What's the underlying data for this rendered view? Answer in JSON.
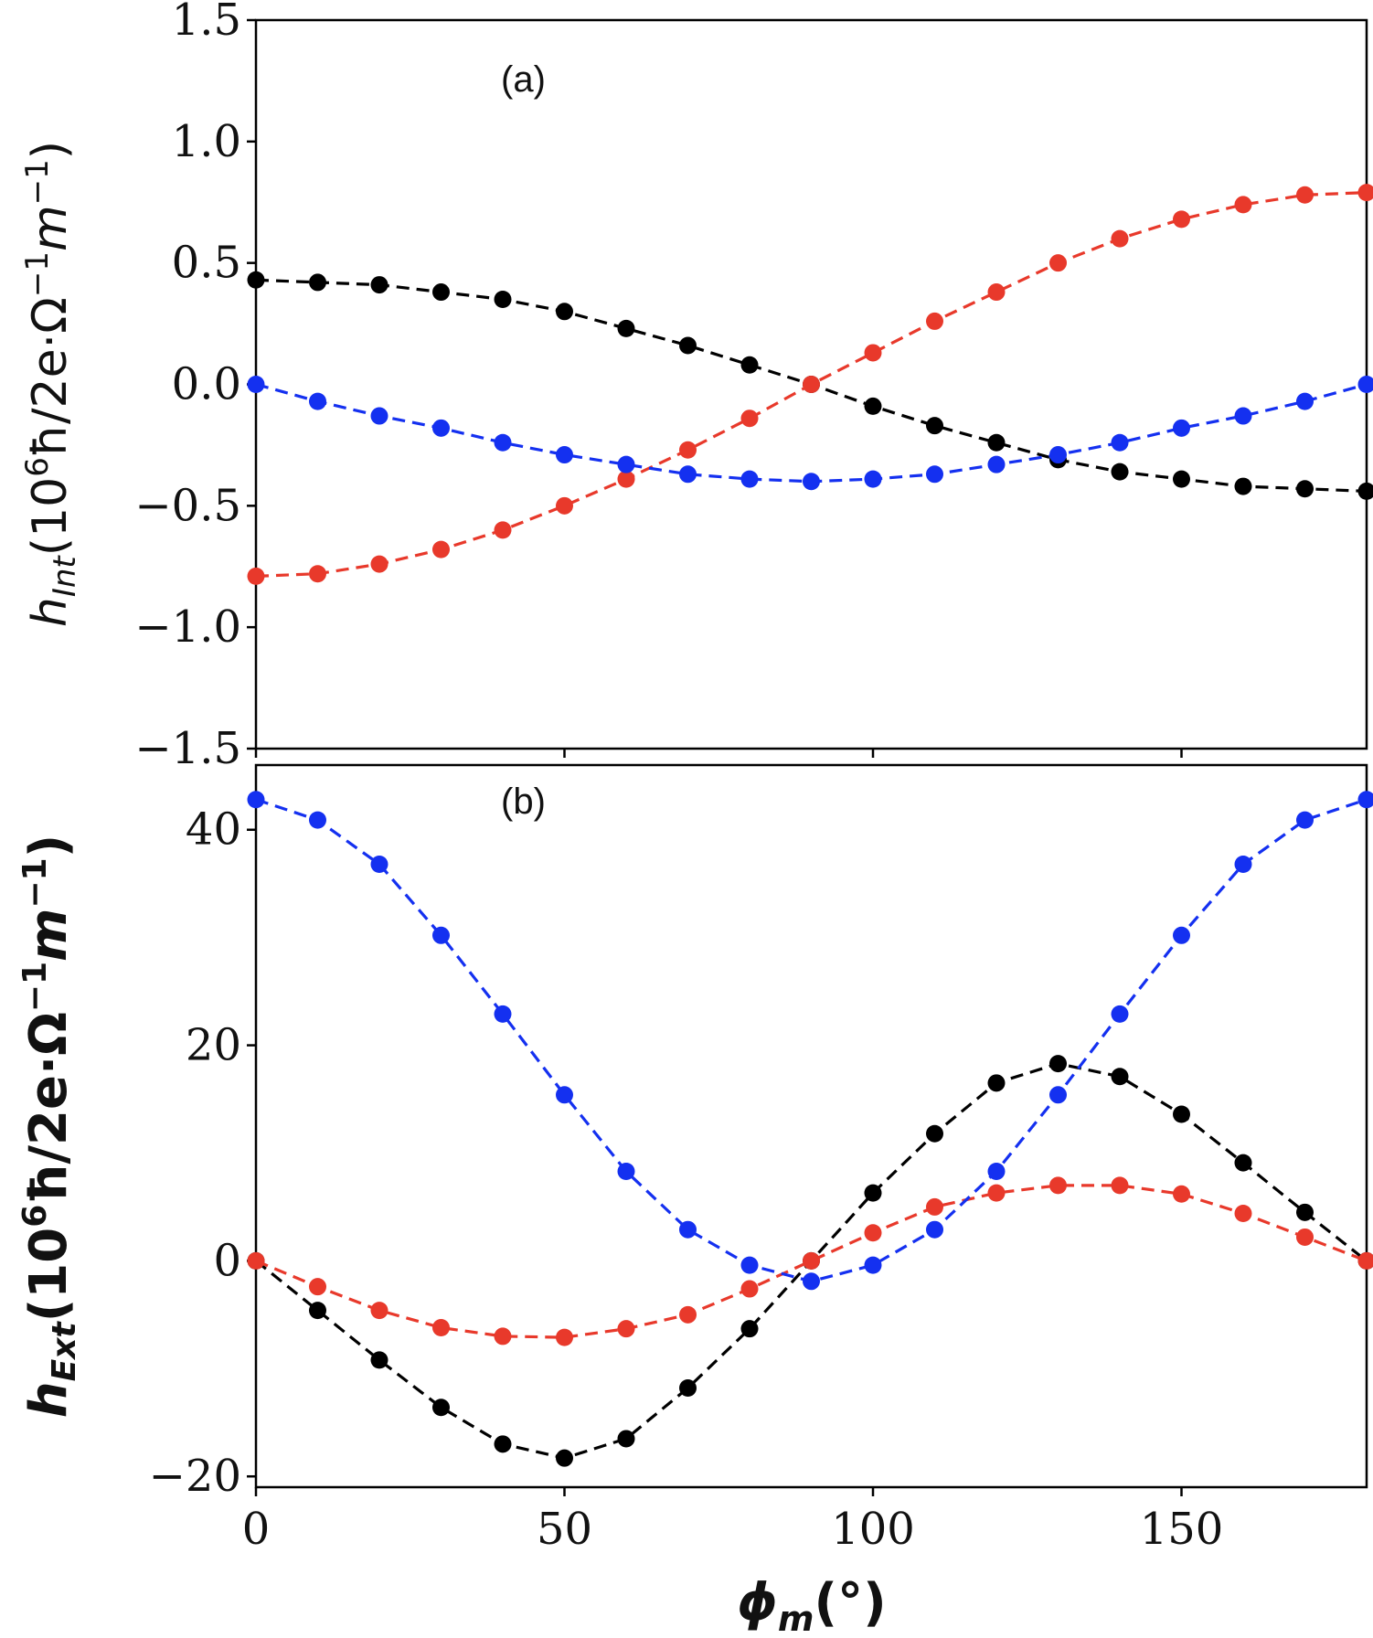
{
  "chart_data": [
    {
      "type": "line",
      "panel_label": "(a)",
      "ylabel": {
        "var": "h",
        "sub": "Int",
        "units_prefix": "(10",
        "exp6": "6",
        "hbar": "ħ",
        "mid": "/2e·Ω",
        "exp_neg1": "−1",
        "m": "m",
        "exp_neg1b": "−1",
        "close": ")"
      },
      "x": [
        0,
        10,
        20,
        30,
        40,
        50,
        60,
        70,
        80,
        90,
        100,
        110,
        120,
        130,
        140,
        150,
        160,
        170,
        180
      ],
      "xlim": [
        0,
        180
      ],
      "ylim": [
        -1.5,
        1.5
      ],
      "yticks": [
        -1.5,
        -1.0,
        -0.5,
        0.0,
        0.5,
        1.0,
        1.5
      ],
      "ytick_labels": [
        "−1.5",
        "−1.0",
        "−0.5",
        "0.0",
        "0.5",
        "1.0",
        "1.5"
      ],
      "xticks": [
        0,
        50,
        100,
        150
      ],
      "series": [
        {
          "name": "black",
          "color": "#000000",
          "values": [
            0.43,
            0.42,
            0.41,
            0.38,
            0.35,
            0.3,
            0.23,
            0.16,
            0.08,
            0.0,
            -0.09,
            -0.17,
            -0.24,
            -0.31,
            -0.36,
            -0.39,
            -0.42,
            -0.43,
            -0.44
          ]
        },
        {
          "name": "red",
          "color": "#e8392b",
          "values": [
            -0.79,
            -0.78,
            -0.74,
            -0.68,
            -0.6,
            -0.5,
            -0.39,
            -0.27,
            -0.14,
            0.0,
            0.13,
            0.26,
            0.38,
            0.5,
            0.6,
            0.68,
            0.74,
            0.78,
            0.79
          ]
        },
        {
          "name": "blue",
          "color": "#1430f0",
          "values": [
            0.0,
            -0.07,
            -0.13,
            -0.18,
            -0.24,
            -0.29,
            -0.33,
            -0.37,
            -0.39,
            -0.4,
            -0.39,
            -0.37,
            -0.33,
            -0.29,
            -0.24,
            -0.18,
            -0.13,
            -0.07,
            0.0
          ]
        }
      ]
    },
    {
      "type": "line",
      "panel_label": "(b)",
      "ylabel": {
        "var": "h",
        "sub": "Ext",
        "units_prefix": "(10",
        "exp6": "6",
        "hbar": "ħ",
        "mid": "/2e·Ω",
        "exp_neg1": "−1",
        "m": "m",
        "exp_neg1b": "−1",
        "close": ")"
      },
      "xlabel": {
        "var": "ϕ",
        "sub": "m",
        "unit": "(°)"
      },
      "x": [
        0,
        10,
        20,
        30,
        40,
        50,
        60,
        70,
        80,
        90,
        100,
        110,
        120,
        130,
        140,
        150,
        160,
        170,
        180
      ],
      "xlim": [
        0,
        180
      ],
      "ylim": [
        -21,
        46
      ],
      "yticks": [
        -20,
        0,
        20,
        40
      ],
      "ytick_labels": [
        "−20",
        "0",
        "20",
        "40"
      ],
      "xticks": [
        0,
        50,
        100,
        150
      ],
      "xtick_labels": [
        "0",
        "50",
        "100",
        "150"
      ],
      "series": [
        {
          "name": "black",
          "color": "#000000",
          "values": [
            0.0,
            -4.6,
            -9.2,
            -13.6,
            -17.0,
            -18.3,
            -16.5,
            -11.8,
            -6.3,
            0.0,
            6.3,
            11.8,
            16.5,
            18.3,
            17.1,
            13.6,
            9.1,
            4.5,
            0.0
          ]
        },
        {
          "name": "red",
          "color": "#e8392b",
          "values": [
            0.0,
            -2.4,
            -4.6,
            -6.2,
            -7.0,
            -7.1,
            -6.3,
            -5.0,
            -2.6,
            0.0,
            2.6,
            5.0,
            6.3,
            7.0,
            7.0,
            6.2,
            4.4,
            2.2,
            0.0
          ]
        },
        {
          "name": "blue",
          "color": "#1430f0",
          "values": [
            42.8,
            40.9,
            36.8,
            30.2,
            22.9,
            15.4,
            8.3,
            2.9,
            -0.4,
            -1.9,
            -0.4,
            2.9,
            8.3,
            15.4,
            22.9,
            30.2,
            36.8,
            40.9,
            42.8
          ]
        }
      ]
    }
  ]
}
